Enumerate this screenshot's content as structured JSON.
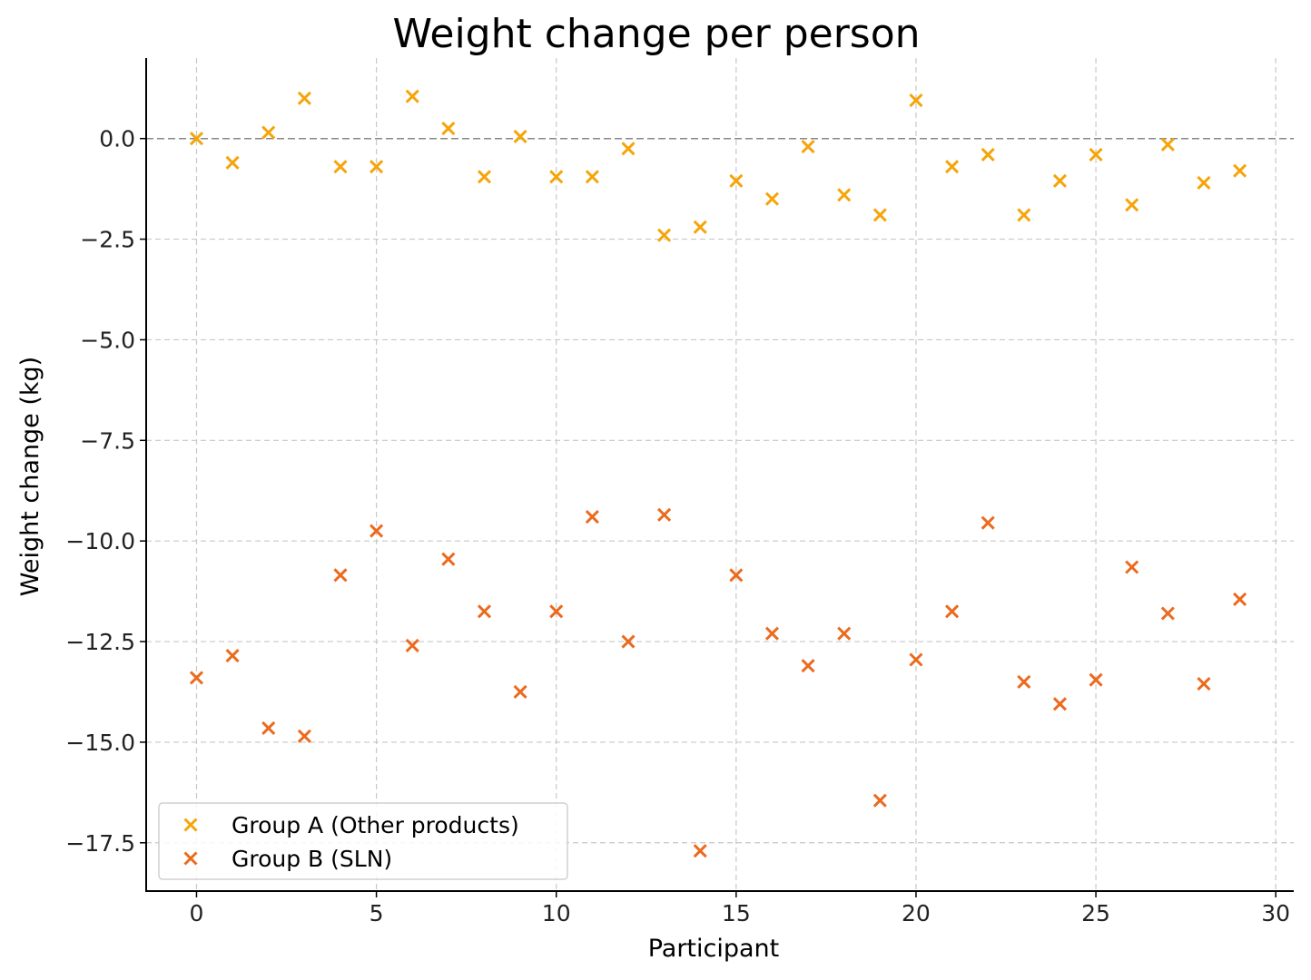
{
  "chart_data": {
    "type": "scatter",
    "title": "Weight change per person",
    "xlabel": "Participant",
    "ylabel": "Weight change (kg)",
    "xlim": [
      -1.4,
      30.5
    ],
    "ylim": [
      -18.7,
      2.0
    ],
    "x_ticks": [
      0,
      5,
      10,
      15,
      20,
      25,
      30
    ],
    "y_ticks": [
      0.0,
      -2.5,
      -5.0,
      -7.5,
      -10.0,
      -12.5,
      -15.0,
      -17.5
    ],
    "x_tick_labels": [
      "0",
      "5",
      "10",
      "15",
      "20",
      "25",
      "30"
    ],
    "y_tick_labels": [
      "0.0",
      "−2.5",
      "−5.0",
      "−7.5",
      "−10.0",
      "−12.5",
      "−15.0",
      "−17.5"
    ],
    "grid": true,
    "reference_line_y": 0,
    "legend_position": "bottom-left",
    "marker": "x",
    "series": [
      {
        "name": "Group A (Other products)",
        "color": "#f5a50a",
        "x": [
          0,
          1,
          2,
          3,
          4,
          5,
          6,
          7,
          8,
          9,
          10,
          11,
          12,
          13,
          14,
          15,
          16,
          17,
          18,
          19,
          20,
          21,
          22,
          23,
          24,
          25,
          26,
          27,
          28,
          29
        ],
        "values": [
          0.0,
          -0.6,
          0.15,
          1.0,
          -0.7,
          -0.7,
          1.05,
          0.25,
          -0.95,
          0.05,
          -0.95,
          -0.95,
          -0.25,
          -2.4,
          -2.2,
          -1.05,
          -1.5,
          -0.2,
          -1.4,
          -1.9,
          0.95,
          -0.7,
          -0.4,
          -1.9,
          -1.05,
          -0.4,
          -1.65,
          -0.15,
          -1.1,
          -0.8
        ]
      },
      {
        "name": "Group B (SLN)",
        "color": "#ec6a1e",
        "x": [
          0,
          1,
          2,
          3,
          4,
          5,
          6,
          7,
          8,
          9,
          10,
          11,
          12,
          13,
          14,
          15,
          16,
          17,
          18,
          19,
          20,
          21,
          22,
          23,
          24,
          25,
          26,
          27,
          28,
          29
        ],
        "values": [
          -13.4,
          -12.85,
          -14.65,
          -14.85,
          -10.85,
          -9.75,
          -12.6,
          -10.45,
          -11.75,
          -13.75,
          -11.75,
          -9.4,
          -12.5,
          -9.35,
          -17.7,
          -10.85,
          -12.3,
          -13.1,
          -12.3,
          -16.45,
          -12.95,
          -11.75,
          -9.55,
          -13.5,
          -14.05,
          -13.45,
          -10.65,
          -11.8,
          -13.55,
          -11.45
        ]
      }
    ]
  }
}
